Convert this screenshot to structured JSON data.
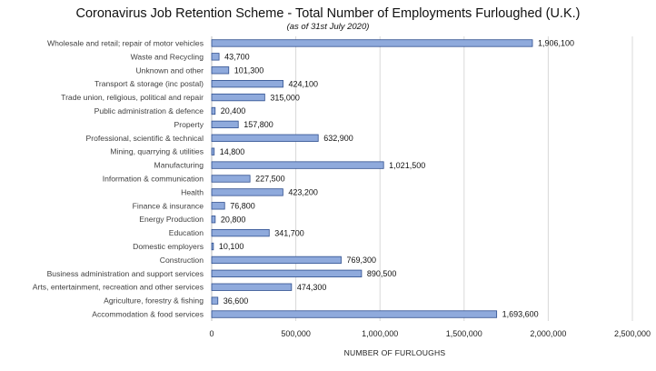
{
  "chart_data": {
    "type": "bar",
    "orientation": "horizontal",
    "title": "Coronavirus Job Retention Scheme - Total Number of Employments Furloughed (U.K.)",
    "subtitle": "(as of 31st July 2020)",
    "xlabel": "NUMBER OF FURLOUGHS",
    "ylabel": "",
    "xlim": [
      0,
      2500000
    ],
    "xticks": [
      "0",
      "500,000",
      "1,000,000",
      "1,500,000",
      "2,000,000",
      "2,500,000"
    ],
    "grid": true,
    "bar_color": "#8faadc",
    "bar_border": "#2f4f8f",
    "categories": [
      "Wholesale and retail; repair of motor vehicles",
      "Waste and Recycling",
      "Unknown and other",
      "Transport & storage (inc postal)",
      "Trade union, religious, political and repair",
      "Public administration & defence",
      "Property",
      "Professional, scientific & technical",
      "Mining, quarrying & utilities",
      "Manufacturing",
      "Information & communication",
      "Health",
      "Finance & insurance",
      "Energy Production",
      "Education",
      "Domestic employers",
      "Construction",
      "Business administration and support services",
      "Arts, entertainment, recreation and other services",
      "Agriculture, forestry & fishing",
      "Accommodation & food services"
    ],
    "values": [
      1906100,
      43700,
      101300,
      424100,
      315000,
      20400,
      157800,
      632900,
      14800,
      1021500,
      227500,
      423200,
      76800,
      20800,
      341700,
      10100,
      769300,
      890500,
      474300,
      36600,
      1693600
    ],
    "value_labels": [
      "1,906,100",
      "43,700",
      "101,300",
      "424,100",
      "315,000",
      "20,400",
      "157,800",
      "632,900",
      "14,800",
      "1,021,500",
      "227,500",
      "423,200",
      "76,800",
      "20,800",
      "341,700",
      "10,100",
      "769,300",
      "890,500",
      "474,300",
      "36,600",
      "1,693,600"
    ]
  }
}
